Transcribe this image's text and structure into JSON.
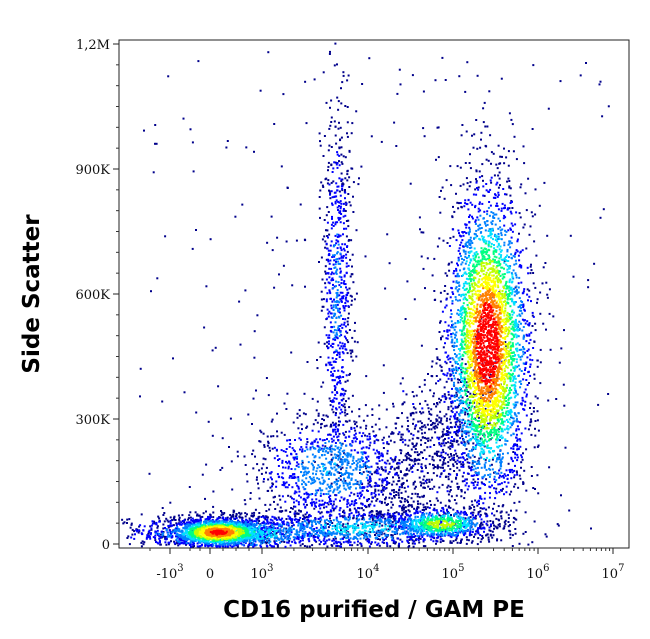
{
  "chart_data": {
    "type": "scatter",
    "subtype": "flow-cytometry-density-dot-plot",
    "xlabel": "CD16 purified / GAM PE",
    "ylabel": "Side Scatter",
    "x_scale": "biexponential",
    "y_scale": "linear",
    "xlim": [
      -3000,
      10000000
    ],
    "ylim": [
      0,
      1200000
    ],
    "x_tick_labels": [
      "-10^3",
      "0",
      "10^3",
      "10^4",
      "10^5",
      "10^6",
      "10^7"
    ],
    "x_ticks": [
      -1000,
      0,
      1000,
      10000,
      100000,
      1000000,
      10000000
    ],
    "y_tick_labels": [
      "0",
      "300K",
      "600K",
      "900K",
      "1,2M"
    ],
    "y_ticks": [
      0,
      300000,
      600000,
      900000,
      1200000
    ],
    "grid": false,
    "legend": "none",
    "color_map": [
      "#00008b",
      "#0000ff",
      "#0080ff",
      "#00e0ff",
      "#00ff80",
      "#c0ff00",
      "#ffff00",
      "#ff8000",
      "#ff0000"
    ],
    "populations": [
      {
        "center_x": 250000,
        "center_y": 480000,
        "spread_y": 170000,
        "relative_density": 1.0
      },
      {
        "center_x": 150,
        "center_y": 30000,
        "spread_y": 15000,
        "relative_density": 0.8
      },
      {
        "center_x": 70000,
        "center_y": 50000,
        "spread_y": 20000,
        "relative_density": 0.5
      },
      {
        "center_x": 4500,
        "center_y": 180000,
        "spread_y": 60000,
        "relative_density": 0.35
      },
      {
        "center_x": 5000,
        "center_y": 600000,
        "spread_y": 200000,
        "relative_density": 0.15
      }
    ]
  }
}
